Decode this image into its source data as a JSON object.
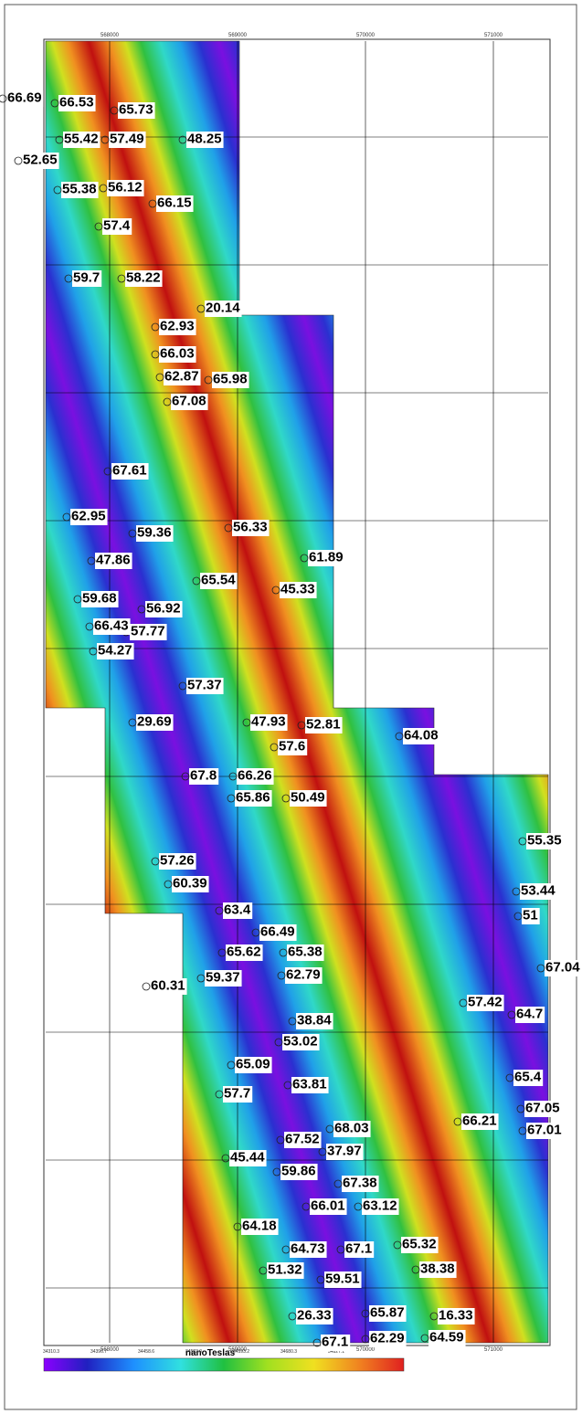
{
  "map": {
    "easting_ticks": [
      "568000",
      "569000",
      "570000",
      "571000"
    ],
    "readings": [
      "66.69",
      "66.53",
      "65.73",
      "55.42",
      "57.49",
      "48.25",
      "52.65",
      "55.38",
      "56.12",
      "66.15",
      "57.4",
      "59.7",
      "58.22",
      "20.14",
      "62.93",
      "66.03",
      "62.87",
      "65.98",
      "67.08",
      "67.61",
      "62.95",
      "59.36",
      "56.33",
      "61.89",
      "47.86",
      "65.54",
      "45.33",
      "59.68",
      "56.92",
      "57.77",
      "66.43",
      "54.27",
      "57.37",
      "29.69",
      "47.93",
      "52.81",
      "64.08",
      "57.6",
      "67.8",
      "66.26",
      "65.86",
      "50.49",
      "55.35",
      "57.26",
      "60.39",
      "53.44",
      "51",
      "63.4",
      "66.49",
      "65.62",
      "65.38",
      "67.04",
      "60.31",
      "59.37",
      "62.79",
      "57.42",
      "64.7",
      "38.84",
      "53.02",
      "65.09",
      "63.81",
      "65.4",
      "57.7",
      "67.05",
      "66.21",
      "67.01",
      "68.03",
      "67.52",
      "37.97",
      "45.44",
      "59.86",
      "67.38",
      "66.01",
      "63.12",
      "64.18",
      "64.73",
      "67.1",
      "65.32",
      "51.32",
      "38.38",
      "59.51",
      "26.33",
      "65.87",
      "16.33",
      "67.1",
      "62.29",
      "64.59"
    ],
    "legend": {
      "title": "nanoTeslas",
      "labels": [
        "34310.3",
        "34396.7",
        "34458.6",
        "34523.0",
        "34593.2",
        "34680.3",
        "34827.1"
      ]
    }
  }
}
